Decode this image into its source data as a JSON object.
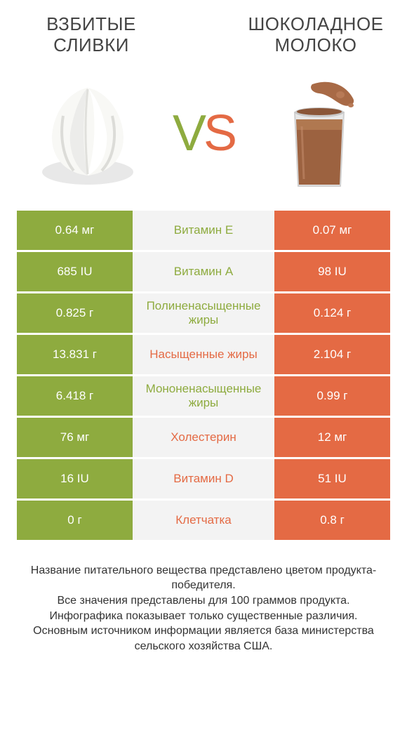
{
  "left_title": "ВЗБИТЫЕ СЛИВКИ",
  "right_title": "ШОКОЛАДНОЕ МОЛОКО",
  "colors": {
    "left": "#8eab3f",
    "right": "#e46a44",
    "mid_bg": "#f3f3f3",
    "text_dark": "#444444"
  },
  "vs": {
    "v": "V",
    "s": "S"
  },
  "rows": [
    {
      "left": "0.64 мг",
      "mid": "Витамин E",
      "right": "0.07 мг",
      "winner": "left"
    },
    {
      "left": "685 IU",
      "mid": "Витамин A",
      "right": "98 IU",
      "winner": "left"
    },
    {
      "left": "0.825 г",
      "mid": "Полиненасыщенные жиры",
      "right": "0.124 г",
      "winner": "left"
    },
    {
      "left": "13.831 г",
      "mid": "Насыщенные жиры",
      "right": "2.104 г",
      "winner": "right"
    },
    {
      "left": "6.418 г",
      "mid": "Мононенасыщенные жиры",
      "right": "0.99 г",
      "winner": "left"
    },
    {
      "left": "76 мг",
      "mid": "Холестерин",
      "right": "12 мг",
      "winner": "right"
    },
    {
      "left": "16 IU",
      "mid": "Витамин D",
      "right": "51 IU",
      "winner": "right"
    },
    {
      "left": "0 г",
      "mid": "Клетчатка",
      "right": "0.8 г",
      "winner": "right"
    }
  ],
  "footer_lines": [
    "Название питательного вещества представлено цветом продукта-победителя.",
    "Все значения представлены для 100 граммов продукта.",
    "Инфографика показывает только существенные различия.",
    "Основным источником информации является база министерства сельского хозяйства США."
  ]
}
